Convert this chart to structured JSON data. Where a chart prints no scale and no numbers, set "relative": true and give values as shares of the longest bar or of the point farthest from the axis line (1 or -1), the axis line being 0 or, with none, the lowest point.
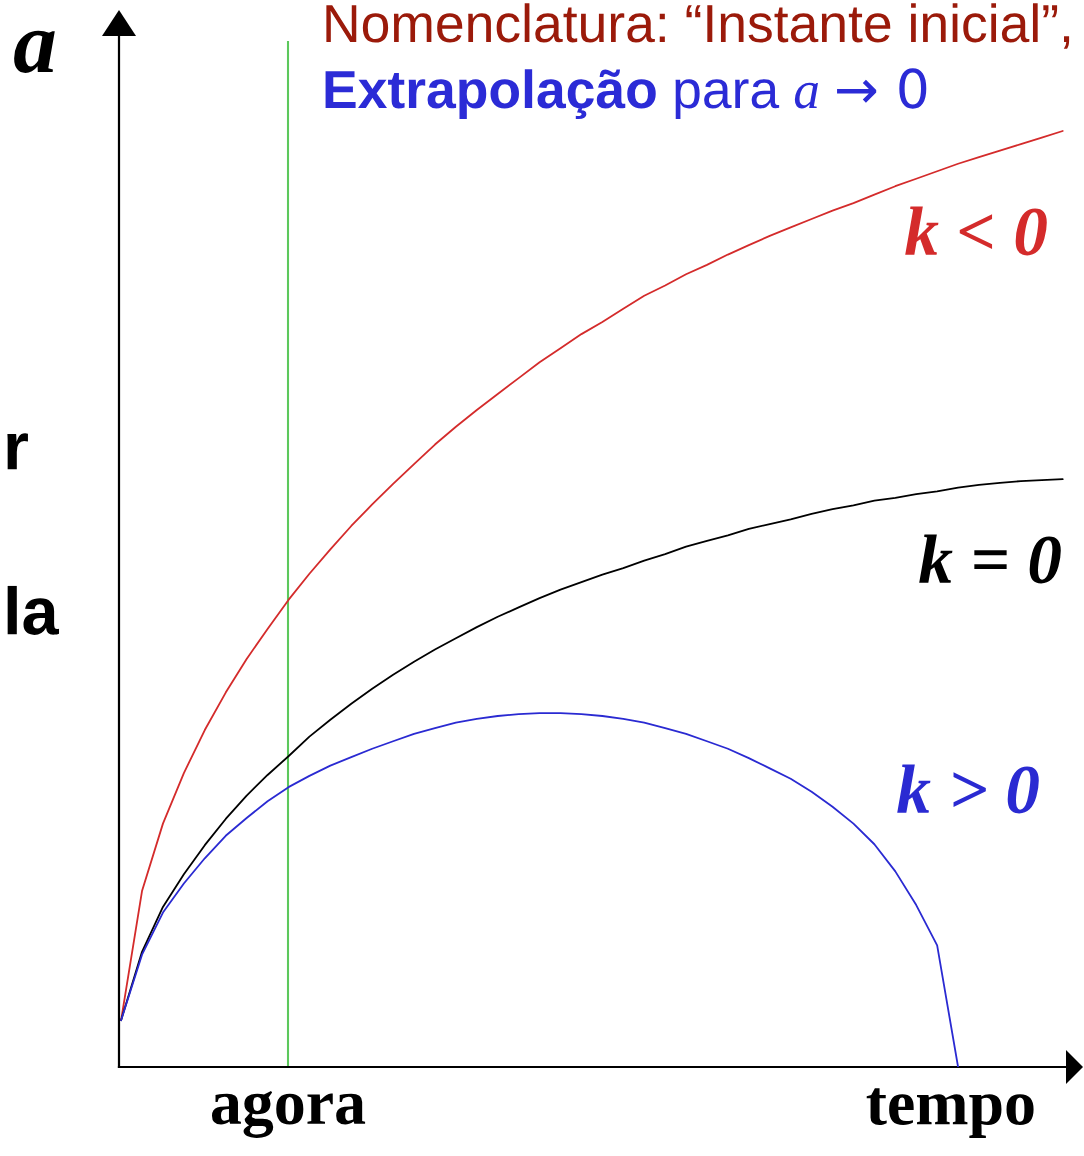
{
  "chart_data": {
    "type": "line",
    "title": "Nomenclatura: “Instante inicial”,",
    "subtitle": "Extrapolação para a → 0",
    "ylabel": "a",
    "xlabel": "tempo",
    "categories": [
      null,
      null,
      null,
      null,
      null,
      null,
      null,
      null,
      null,
      null,
      null,
      null,
      null,
      null,
      null,
      null,
      null,
      null,
      null,
      null,
      null,
      null,
      null,
      null,
      null,
      null,
      null,
      null,
      null,
      null,
      null,
      null,
      null,
      null,
      null,
      null,
      null,
      null,
      null,
      null,
      null,
      null,
      null,
      null,
      null,
      null
    ],
    "relative": true,
    "series": [
      {
        "name": "k < 0",
        "color": "#d42b2b",
        "values": [
          0.05,
          0.188,
          0.26,
          0.314,
          0.36,
          0.4,
          0.436,
          0.468,
          0.499,
          0.527,
          0.553,
          0.578,
          0.601,
          0.623,
          0.644,
          0.665,
          0.684,
          0.702,
          0.719,
          0.736,
          0.753,
          0.768,
          0.783,
          0.796,
          0.81,
          0.824,
          0.835,
          0.847,
          0.857,
          0.868,
          0.878,
          0.888,
          0.897,
          0.906,
          0.915,
          0.923,
          0.932,
          0.941,
          0.949,
          0.957,
          0.965,
          0.972,
          0.979,
          0.986,
          0.993,
          1.0
        ]
      },
      {
        "name": "k = 0",
        "color": "#000000",
        "values": [
          0.05,
          0.123,
          0.171,
          0.206,
          0.237,
          0.265,
          0.29,
          0.312,
          0.332,
          0.353,
          0.371,
          0.388,
          0.404,
          0.419,
          0.433,
          0.446,
          0.458,
          0.47,
          0.481,
          0.491,
          0.501,
          0.51,
          0.518,
          0.526,
          0.533,
          0.541,
          0.548,
          0.556,
          0.562,
          0.568,
          0.575,
          0.58,
          0.585,
          0.591,
          0.596,
          0.6,
          0.605,
          0.608,
          0.612,
          0.615,
          0.619,
          0.622,
          0.624,
          0.626,
          0.627,
          0.628
        ]
      },
      {
        "name": "k > 0",
        "color": "#2a2ad2",
        "values": [
          0.05,
          0.12,
          0.165,
          0.196,
          0.223,
          0.247,
          0.266,
          0.284,
          0.299,
          0.311,
          0.322,
          0.331,
          0.34,
          0.348,
          0.356,
          0.362,
          0.368,
          0.372,
          0.375,
          0.377,
          0.378,
          0.378,
          0.377,
          0.375,
          0.372,
          0.368,
          0.362,
          0.356,
          0.348,
          0.34,
          0.33,
          0.319,
          0.308,
          0.294,
          0.278,
          0.26,
          0.238,
          0.209,
          0.173,
          0.13,
          0.0,
          null,
          null,
          null,
          null,
          null
        ]
      }
    ],
    "annotations": [
      "r",
      "la",
      "agora"
    ]
  }
}
